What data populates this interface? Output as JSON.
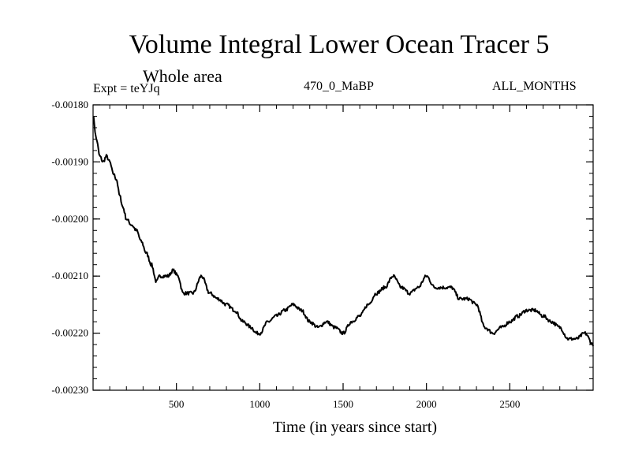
{
  "chart_data": {
    "type": "line",
    "title": "Volume Integral Lower Ocean Tracer 5",
    "subtitle": "Whole area",
    "experiment": "Expt = teYJq",
    "period": "470_0_MaBP",
    "months": "ALL_MONTHS",
    "xlabel": "Time (in years since start)",
    "ylabel": "",
    "xlim": [
      0,
      3000
    ],
    "ylim": [
      -0.0023,
      -0.0018
    ],
    "xticks": [
      500,
      1000,
      1500,
      2000,
      2500
    ],
    "xtick_labels": [
      "500",
      "1000",
      "1500",
      "2000",
      "2500"
    ],
    "yticks": [
      -0.0018,
      -0.0019,
      -0.002,
      -0.0021,
      -0.0022,
      -0.0023
    ],
    "ytick_labels": [
      "-0.00180",
      "-0.00190",
      "-0.00200",
      "-0.00210",
      "-0.00220",
      "-0.00230"
    ],
    "grid": false,
    "series": [
      {
        "name": "Volume Integral Lower Ocean Tracer 5",
        "x": [
          0,
          20,
          40,
          60,
          80,
          100,
          120,
          140,
          160,
          180,
          200,
          230,
          260,
          290,
          320,
          350,
          380,
          400,
          420,
          450,
          480,
          510,
          540,
          560,
          600,
          650,
          700,
          750,
          800,
          850,
          900,
          950,
          980,
          1000,
          1050,
          1100,
          1150,
          1200,
          1250,
          1300,
          1350,
          1400,
          1450,
          1500,
          1550,
          1600,
          1650,
          1700,
          1750,
          1800,
          1850,
          1900,
          1950,
          2000,
          2050,
          2100,
          2150,
          2200,
          2250,
          2300,
          2350,
          2400,
          2450,
          2500,
          2550,
          2600,
          2650,
          2700,
          2750,
          2800,
          2850,
          2900,
          2950,
          3000
        ],
        "y": [
          -0.00182,
          -0.00186,
          -0.00189,
          -0.0019,
          -0.00189,
          -0.0019,
          -0.00192,
          -0.00193,
          -0.00196,
          -0.00198,
          -0.002,
          -0.00201,
          -0.00202,
          -0.00204,
          -0.00206,
          -0.00208,
          -0.00211,
          -0.0021,
          -0.0021,
          -0.0021,
          -0.00209,
          -0.0021,
          -0.00213,
          -0.00213,
          -0.00213,
          -0.0021,
          -0.00213,
          -0.00214,
          -0.00215,
          -0.00216,
          -0.00218,
          -0.00219,
          -0.0022,
          -0.0022,
          -0.00218,
          -0.00217,
          -0.00216,
          -0.00215,
          -0.00216,
          -0.00218,
          -0.00219,
          -0.00218,
          -0.00219,
          -0.0022,
          -0.00218,
          -0.00217,
          -0.00215,
          -0.00213,
          -0.00212,
          -0.0021,
          -0.00212,
          -0.00213,
          -0.00212,
          -0.0021,
          -0.00212,
          -0.00212,
          -0.00212,
          -0.00214,
          -0.00214,
          -0.00215,
          -0.00219,
          -0.0022,
          -0.00219,
          -0.00218,
          -0.00217,
          -0.00216,
          -0.00216,
          -0.00217,
          -0.00218,
          -0.00219,
          -0.00221,
          -0.00221,
          -0.0022,
          -0.00222
        ]
      }
    ]
  }
}
